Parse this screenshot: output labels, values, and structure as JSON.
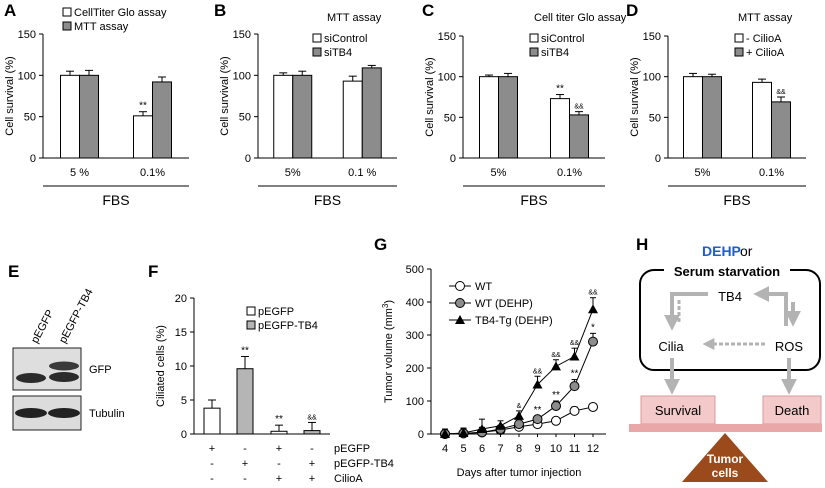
{
  "figure": {
    "panels": {
      "A": {
        "label": "A",
        "ylabel": "Cell survival (%)",
        "title": "",
        "legend": [
          "CellTiter Glo assay",
          "MTT assay"
        ],
        "group_label": "FBS"
      },
      "B": {
        "label": "B",
        "ylabel": "Cell survival (%)",
        "title": "MTT assay",
        "legend": [
          "siControl",
          "siTB4"
        ],
        "group_label": "FBS"
      },
      "C": {
        "label": "C",
        "ylabel": "Cell survival (%)",
        "title": "Cell titer Glo assay",
        "legend": [
          "siControl",
          "siTB4"
        ],
        "group_label": "FBS"
      },
      "D": {
        "label": "D",
        "ylabel": "Cell survival (%)",
        "title": "MTT assay",
        "legend": [
          "- CilioA",
          "+ CilioA"
        ],
        "group_label": "FBS"
      },
      "E": {
        "label": "E",
        "lanes": [
          "pEGFP",
          "pEGFP-TB4"
        ],
        "rows": [
          "GFP",
          "Tubulin"
        ]
      },
      "F": {
        "label": "F",
        "ylabel": "Ciliated cells (%)",
        "legend": [
          "pEGFP",
          "pEGFP-TB4"
        ],
        "conditions": [
          {
            "name": "pEGFP",
            "marks": [
              "+",
              "-",
              "+",
              "-"
            ]
          },
          {
            "name": "pEGFP-TB4",
            "marks": [
              "-",
              "+",
              "-",
              "+"
            ]
          },
          {
            "name": "CilioA",
            "marks": [
              "-",
              "-",
              "+",
              "+"
            ]
          }
        ]
      },
      "G": {
        "label": "G",
        "xlabel": "Days after tumor injection",
        "ylabel_main": "Tumor volume (mm",
        "ylabel_sup": "3",
        "ylabel_end": ")",
        "legend": [
          "WT",
          "WT (DEHP)",
          "TB4-Tg (DEHP)"
        ]
      },
      "H": {
        "label": "H",
        "dehp": "DEHP",
        "or": " or",
        "serum": "Serum starvation",
        "tb4": "TB4",
        "cilia": "Cilia",
        "ros": "ROS",
        "survival": "Survival",
        "death": "Death",
        "tumor_line1": "Tumor",
        "tumor_line2": "cells"
      }
    }
  },
  "chart_data": [
    {
      "panel": "A",
      "type": "bar",
      "title": "",
      "xlabel": "FBS",
      "ylabel": "Cell survival (%)",
      "ylim": [
        0,
        150
      ],
      "yticks": [
        0,
        50,
        100,
        150
      ],
      "categories": [
        "5 %",
        "0.1%"
      ],
      "series": [
        {
          "name": "CellTiter Glo assay",
          "color": "#ffffff",
          "values": [
            100,
            51
          ],
          "errors": [
            5,
            5
          ]
        },
        {
          "name": "MTT assay",
          "color": "#8c8c8c",
          "values": [
            100,
            92
          ],
          "errors": [
            6,
            6
          ]
        }
      ],
      "annotations": [
        {
          "series": 0,
          "index": 1,
          "text": "**"
        }
      ]
    },
    {
      "panel": "B",
      "type": "bar",
      "title": "MTT assay",
      "xlabel": "FBS",
      "ylabel": "Cell survival (%)",
      "ylim": [
        0,
        150
      ],
      "yticks": [
        0,
        50,
        100,
        150
      ],
      "categories": [
        "5%",
        "0.1 %"
      ],
      "series": [
        {
          "name": "siControl",
          "color": "#ffffff",
          "values": [
            100,
            93
          ],
          "errors": [
            3,
            6
          ]
        },
        {
          "name": "siTB4",
          "color": "#8c8c8c",
          "values": [
            100,
            109
          ],
          "errors": [
            5,
            3
          ]
        }
      ],
      "annotations": []
    },
    {
      "panel": "C",
      "type": "bar",
      "title": "Cell titer Glo assay",
      "xlabel": "FBS",
      "ylabel": "Cell survival (%)",
      "ylim": [
        0,
        150
      ],
      "yticks": [
        0,
        50,
        100,
        150
      ],
      "categories": [
        "5%",
        "0.1%"
      ],
      "series": [
        {
          "name": "siControl",
          "color": "#ffffff",
          "values": [
            100,
            73
          ],
          "errors": [
            2,
            5
          ]
        },
        {
          "name": "siTB4",
          "color": "#8c8c8c",
          "values": [
            100,
            53
          ],
          "errors": [
            4,
            4
          ]
        }
      ],
      "annotations": [
        {
          "series": 0,
          "index": 1,
          "text": "**"
        },
        {
          "series": 1,
          "index": 1,
          "text": "&&"
        }
      ]
    },
    {
      "panel": "D",
      "type": "bar",
      "title": "MTT assay",
      "xlabel": "FBS",
      "ylabel": "Cell survival (%)",
      "ylim": [
        0,
        150
      ],
      "yticks": [
        0,
        50,
        100,
        150
      ],
      "categories": [
        "5%",
        "0.1%"
      ],
      "series": [
        {
          "name": "- CilioA",
          "color": "#ffffff",
          "values": [
            100,
            93
          ],
          "errors": [
            4,
            4
          ]
        },
        {
          "name": "+ CilioA",
          "color": "#8c8c8c",
          "values": [
            100,
            69
          ],
          "errors": [
            3,
            6
          ]
        }
      ],
      "annotations": [
        {
          "series": 1,
          "index": 1,
          "text": "&&"
        }
      ]
    },
    {
      "panel": "F",
      "type": "bar",
      "title": "",
      "xlabel": "",
      "ylabel": "Ciliated cells (%)",
      "ylim": [
        0,
        20
      ],
      "yticks": [
        0,
        5,
        10,
        15,
        20
      ],
      "values": [
        3.8,
        9.6,
        0.4,
        0.5
      ],
      "errors": [
        1.2,
        1.8,
        0.9,
        1.2
      ],
      "colors": [
        "#ffffff",
        "#b5b5b5",
        "#ffffff",
        "#b5b5b5"
      ],
      "labels": [
        "",
        "**",
        "**",
        "&&"
      ]
    },
    {
      "panel": "G",
      "type": "line",
      "title": "",
      "xlabel": "Days after tumor injection",
      "ylabel": "Tumor volume (mm3)",
      "x": [
        4,
        5,
        6,
        7,
        8,
        9,
        10,
        11,
        12
      ],
      "ylim": [
        0,
        500
      ],
      "yticks": [
        0,
        100,
        200,
        300,
        400,
        500
      ],
      "series": [
        {
          "name": "WT",
          "marker": "circle-open",
          "values": [
            0,
            2,
            5,
            12,
            22,
            30,
            40,
            70,
            82
          ],
          "errors": [
            15,
            15,
            15,
            10,
            10,
            10,
            10,
            12,
            10
          ],
          "labels": [
            "",
            "",
            "",
            "",
            "",
            "",
            "",
            "",
            ""
          ]
        },
        {
          "name": "WT (DEHP)",
          "marker": "circle-gray",
          "values": [
            0,
            2,
            5,
            15,
            30,
            45,
            85,
            145,
            280
          ],
          "errors": [
            15,
            15,
            15,
            10,
            10,
            10,
            15,
            20,
            25
          ],
          "labels": [
            "",
            "",
            "",
            "",
            "",
            "**",
            "**",
            "**",
            "*"
          ]
        },
        {
          "name": "TB4-Tg (DEHP)",
          "marker": "triangle",
          "values": [
            0,
            3,
            15,
            25,
            55,
            150,
            205,
            235,
            378
          ],
          "errors": [
            15,
            15,
            30,
            15,
            15,
            25,
            20,
            25,
            35
          ],
          "labels": [
            "",
            "",
            "",
            "",
            "&",
            "&&",
            "&&",
            "&&",
            "&&"
          ]
        }
      ]
    }
  ]
}
